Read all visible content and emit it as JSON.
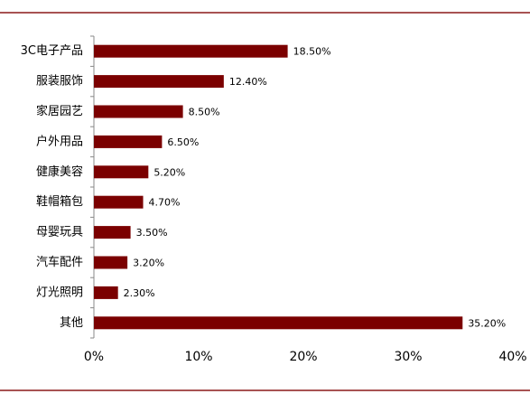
{
  "chart_data": {
    "type": "bar",
    "orientation": "horizontal",
    "categories": [
      "3C电子产品",
      "服装服饰",
      "家居园艺",
      "户外用品",
      "健康美容",
      "鞋帽箱包",
      "母婴玩具",
      "汽车配件",
      "灯光照明",
      "其他"
    ],
    "values": [
      18.5,
      12.4,
      8.5,
      6.5,
      5.2,
      4.7,
      3.5,
      3.2,
      2.3,
      35.2
    ],
    "value_labels": [
      "18.50%",
      "12.40%",
      "8.50%",
      "6.50%",
      "5.20%",
      "4.70%",
      "3.50%",
      "3.20%",
      "2.30%",
      "35.20%"
    ],
    "color": "#7b0000",
    "xlim": [
      0,
      40
    ],
    "xticks": [
      {
        "value": 0,
        "label": "0%"
      },
      {
        "value": 10,
        "label": "10%"
      },
      {
        "value": 20,
        "label": "20%"
      },
      {
        "value": 30,
        "label": "30%"
      },
      {
        "value": 40,
        "label": "40%"
      }
    ],
    "grid": false
  }
}
